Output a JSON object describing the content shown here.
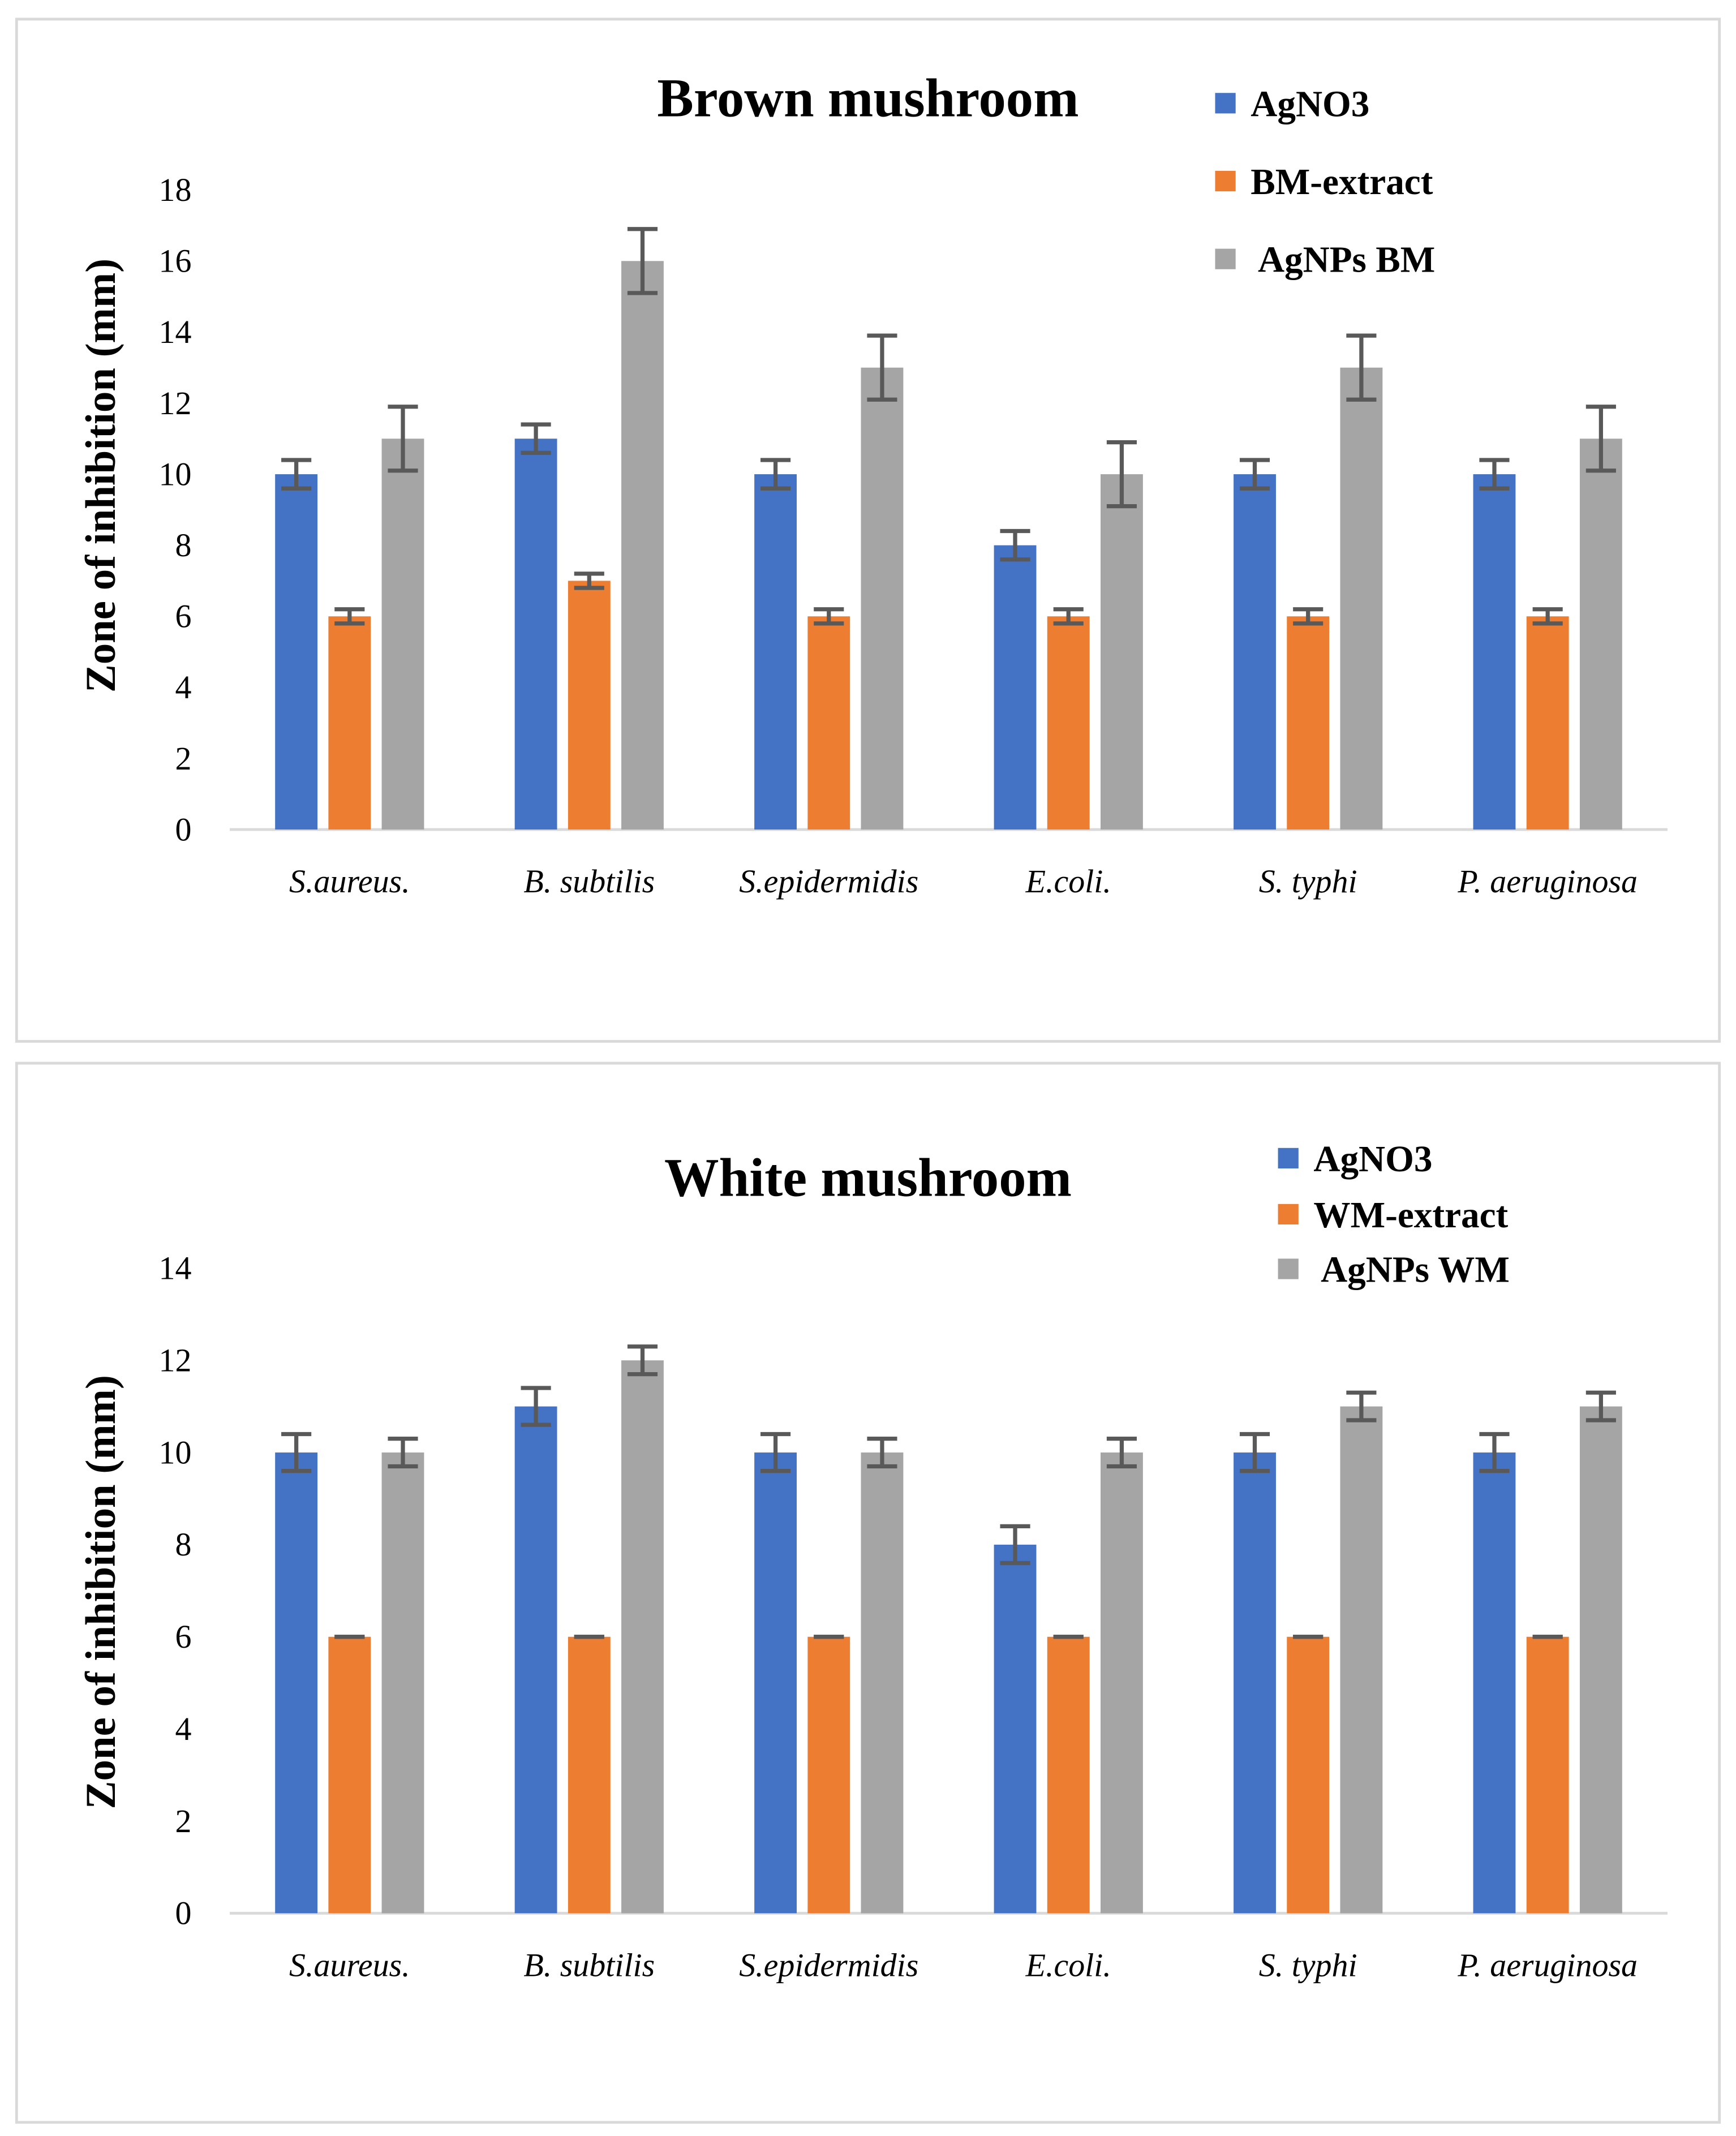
{
  "chart_data": [
    {
      "type": "bar",
      "title": "Brown mushroom",
      "xlabel": "",
      "ylabel": "Zone  of inhibition (mm)",
      "ylim": [
        0,
        18
      ],
      "yticks": [
        0,
        2,
        4,
        6,
        8,
        10,
        12,
        14,
        16,
        18
      ],
      "grid": false,
      "legend_position": "top-right",
      "categories": [
        "S.aureus.",
        "B. subtilis",
        "S.epidermidis",
        "E.coli.",
        "S. typhi",
        "P. aeruginosa"
      ],
      "series": [
        {
          "name": "AgNO3",
          "color": "#4472C4",
          "values": [
            10,
            11,
            10,
            8,
            10,
            10
          ],
          "errors": [
            0.4,
            0.4,
            0.4,
            0.4,
            0.4,
            0.4
          ]
        },
        {
          "name": "BM-extract",
          "color": "#ED7D31",
          "values": [
            6,
            7,
            6,
            6,
            6,
            6
          ],
          "errors": [
            0.2,
            0.2,
            0.2,
            0.2,
            0.2,
            0.2
          ]
        },
        {
          "name": " AgNPs BM",
          "color": "#A5A5A5",
          "values": [
            11,
            16,
            13,
            10,
            13,
            11
          ],
          "errors": [
            0.9,
            0.9,
            0.9,
            0.9,
            0.9,
            0.9
          ]
        }
      ]
    },
    {
      "type": "bar",
      "title": "White mushroom",
      "xlabel": "",
      "ylabel": "Zone of inhibition (mm)",
      "ylim": [
        0,
        14
      ],
      "yticks": [
        0,
        2,
        4,
        6,
        8,
        10,
        12,
        14
      ],
      "grid": false,
      "legend_position": "top-right",
      "categories": [
        "S.aureus.",
        "B. subtilis",
        "S.epidermidis",
        "E.coli.",
        "S. typhi",
        "P. aeruginosa"
      ],
      "series": [
        {
          "name": "AgNO3",
          "color": "#4472C4",
          "values": [
            10,
            11,
            10,
            8,
            10,
            10
          ],
          "errors": [
            0.4,
            0.4,
            0.4,
            0.4,
            0.4,
            0.4
          ]
        },
        {
          "name": "WM-extract",
          "color": "#ED7D31",
          "values": [
            6,
            6,
            6,
            6,
            6,
            6
          ],
          "errors": [
            0,
            0,
            0,
            0,
            0,
            0
          ]
        },
        {
          "name": " AgNPs WM",
          "color": "#A5A5A5",
          "values": [
            10,
            12,
            10,
            10,
            11,
            11
          ],
          "errors": [
            0.3,
            0.3,
            0.3,
            0.3,
            0.3,
            0.3
          ]
        }
      ]
    }
  ]
}
